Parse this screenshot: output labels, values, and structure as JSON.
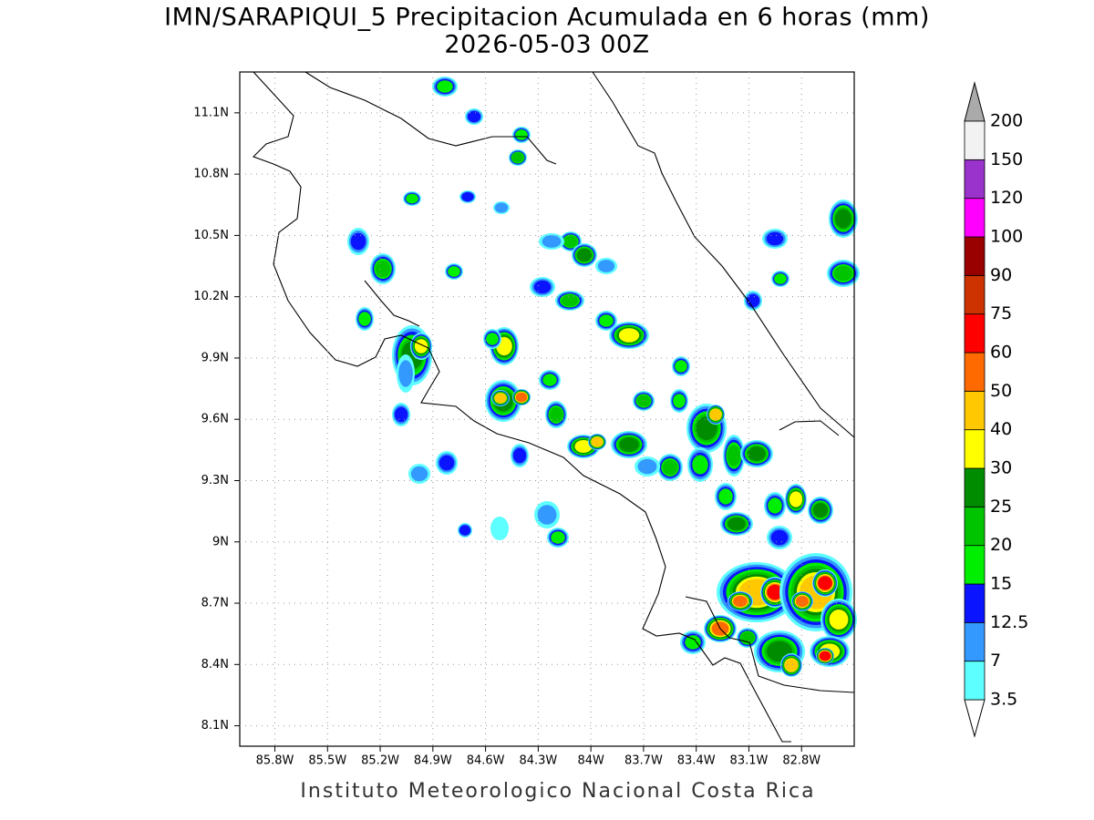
{
  "map": {
    "title": "IMN/SARAPIQUI_5 Precipitacion Acumulada en 6 horas (mm)",
    "subtitle": "2026-05-03 00Z",
    "footer": "Instituto Meteorologico Nacional Costa Rica",
    "xlim": [
      -86.0,
      -82.5
    ],
    "ylim": [
      8.0,
      11.3
    ],
    "xticks": [
      {
        "value": -85.8,
        "label": "85.8W"
      },
      {
        "value": -85.5,
        "label": "85.5W"
      },
      {
        "value": -85.2,
        "label": "85.2W"
      },
      {
        "value": -84.9,
        "label": "84.9W"
      },
      {
        "value": -84.6,
        "label": "84.6W"
      },
      {
        "value": -84.3,
        "label": "84.3W"
      },
      {
        "value": -84.0,
        "label": "84W"
      },
      {
        "value": -83.7,
        "label": "83.7W"
      },
      {
        "value": -83.4,
        "label": "83.4W"
      },
      {
        "value": -83.1,
        "label": "83.1W"
      },
      {
        "value": -82.8,
        "label": "82.8W"
      }
    ],
    "yticks": [
      {
        "value": 11.1,
        "label": "11.1N"
      },
      {
        "value": 10.8,
        "label": "10.8N"
      },
      {
        "value": 10.5,
        "label": "10.5N"
      },
      {
        "value": 10.2,
        "label": "10.2N"
      },
      {
        "value": 9.9,
        "label": "9.9N"
      },
      {
        "value": 9.6,
        "label": "9.6N"
      },
      {
        "value": 9.3,
        "label": "9.3N"
      },
      {
        "value": 9.0,
        "label": "9N"
      },
      {
        "value": 8.7,
        "label": "8.7N"
      },
      {
        "value": 8.4,
        "label": "8.4N"
      },
      {
        "value": 8.1,
        "label": "8.1N"
      }
    ],
    "grid": true,
    "colorbar": {
      "levels": [
        3.5,
        7,
        12.5,
        15,
        20,
        25,
        30,
        40,
        50,
        60,
        75,
        90,
        100,
        120,
        150,
        200
      ],
      "colors": [
        "#5effff",
        "#3399ff",
        "#0a14ff",
        "#00ee00",
        "#00c400",
        "#008c00",
        "#ffff00",
        "#ffc800",
        "#ff6a00",
        "#ff0000",
        "#cc3300",
        "#990000",
        "#ff00ff",
        "#9933cc",
        "#f2f2f2"
      ],
      "under_color": "#ffffff",
      "over_color": "#aaaaaa"
    }
  }
}
